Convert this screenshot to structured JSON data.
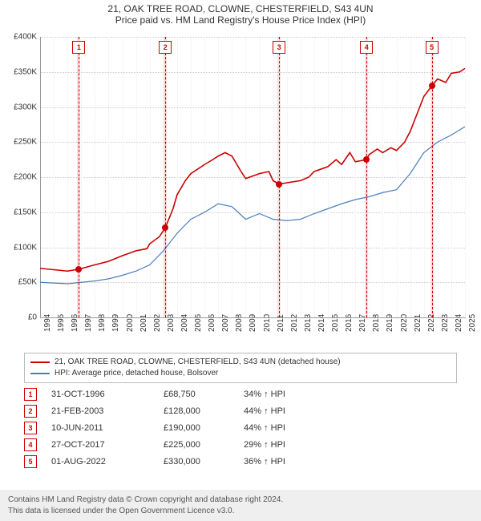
{
  "title": {
    "line1": "21, OAK TREE ROAD, CLOWNE, CHESTERFIELD, S43 4UN",
    "line2": "Price paid vs. HM Land Registry's House Price Index (HPI)"
  },
  "chart": {
    "type": "line",
    "xlim": [
      1994,
      2025
    ],
    "ylim": [
      0,
      400000
    ],
    "ytick_step": 50000,
    "y_prefix": "£",
    "y_ticks": [
      "£0",
      "£50K",
      "£100K",
      "£150K",
      "£200K",
      "£250K",
      "£300K",
      "£350K",
      "£400K"
    ],
    "x_ticks": [
      1994,
      1995,
      1996,
      1997,
      1998,
      1999,
      2000,
      2001,
      2002,
      2003,
      2004,
      2005,
      2006,
      2007,
      2008,
      2009,
      2010,
      2011,
      2012,
      2013,
      2014,
      2015,
      2016,
      2017,
      2018,
      2019,
      2020,
      2021,
      2022,
      2023,
      2024,
      2025
    ],
    "grid_color": "#e5e5e5",
    "series": [
      {
        "name": "price_paid",
        "label": "21, OAK TREE ROAD, CLOWNE, CHESTERFIELD, S43 4UN (detached house)",
        "color": "#cc0000",
        "width": 1.6,
        "xy": [
          [
            1994,
            70000
          ],
          [
            1995,
            68000
          ],
          [
            1996,
            66000
          ],
          [
            1996.83,
            68750
          ],
          [
            1998,
            75000
          ],
          [
            1999,
            80000
          ],
          [
            2000,
            88000
          ],
          [
            2001,
            95000
          ],
          [
            2001.8,
            98000
          ],
          [
            2002,
            105000
          ],
          [
            2002.7,
            115000
          ],
          [
            2003.14,
            128000
          ],
          [
            2003.7,
            155000
          ],
          [
            2004,
            175000
          ],
          [
            2004.6,
            195000
          ],
          [
            2005,
            205000
          ],
          [
            2006,
            218000
          ],
          [
            2006.6,
            225000
          ],
          [
            2007,
            230000
          ],
          [
            2007.5,
            235000
          ],
          [
            2008,
            230000
          ],
          [
            2008.6,
            210000
          ],
          [
            2009,
            198000
          ],
          [
            2010,
            205000
          ],
          [
            2010.7,
            208000
          ],
          [
            2011,
            195000
          ],
          [
            2011.44,
            190000
          ],
          [
            2012,
            192000
          ],
          [
            2013,
            195000
          ],
          [
            2013.6,
            200000
          ],
          [
            2014,
            208000
          ],
          [
            2015,
            215000
          ],
          [
            2015.6,
            225000
          ],
          [
            2016,
            218000
          ],
          [
            2016.6,
            235000
          ],
          [
            2017,
            222000
          ],
          [
            2017.82,
            225000
          ],
          [
            2018,
            232000
          ],
          [
            2018.6,
            240000
          ],
          [
            2019,
            235000
          ],
          [
            2019.6,
            242000
          ],
          [
            2020,
            238000
          ],
          [
            2020.6,
            250000
          ],
          [
            2021,
            265000
          ],
          [
            2021.6,
            295000
          ],
          [
            2022,
            315000
          ],
          [
            2022.58,
            330000
          ],
          [
            2023,
            340000
          ],
          [
            2023.6,
            335000
          ],
          [
            2024,
            348000
          ],
          [
            2024.6,
            350000
          ],
          [
            2025,
            355000
          ]
        ]
      },
      {
        "name": "hpi",
        "label": "HPI: Average price, detached house, Bolsover",
        "color": "#4a7ebb",
        "width": 1.2,
        "xy": [
          [
            1994,
            50000
          ],
          [
            1995,
            49000
          ],
          [
            1996,
            48000
          ],
          [
            1997,
            50000
          ],
          [
            1998,
            52000
          ],
          [
            1999,
            55000
          ],
          [
            2000,
            60000
          ],
          [
            2001,
            66000
          ],
          [
            2002,
            75000
          ],
          [
            2003,
            95000
          ],
          [
            2004,
            120000
          ],
          [
            2005,
            140000
          ],
          [
            2006,
            150000
          ],
          [
            2007,
            162000
          ],
          [
            2008,
            158000
          ],
          [
            2009,
            140000
          ],
          [
            2010,
            148000
          ],
          [
            2011,
            140000
          ],
          [
            2012,
            138000
          ],
          [
            2013,
            140000
          ],
          [
            2014,
            148000
          ],
          [
            2015,
            155000
          ],
          [
            2016,
            162000
          ],
          [
            2017,
            168000
          ],
          [
            2018,
            172000
          ],
          [
            2019,
            178000
          ],
          [
            2020,
            182000
          ],
          [
            2021,
            205000
          ],
          [
            2022,
            235000
          ],
          [
            2023,
            250000
          ],
          [
            2024,
            260000
          ],
          [
            2025,
            272000
          ]
        ]
      }
    ],
    "sales_markers": [
      {
        "n": "1",
        "x": 1996.83,
        "y": 68750
      },
      {
        "n": "2",
        "x": 2003.14,
        "y": 128000
      },
      {
        "n": "3",
        "x": 2011.44,
        "y": 190000
      },
      {
        "n": "4",
        "x": 2017.82,
        "y": 225000
      },
      {
        "n": "5",
        "x": 2022.58,
        "y": 330000
      }
    ],
    "marker_box_color": "#cc0000",
    "band_color": "#ff0000",
    "band_opacity": 0.13
  },
  "legend": {
    "row1": "21, OAK TREE ROAD, CLOWNE, CHESTERFIELD, S43 4UN (detached house)",
    "row2": "HPI: Average price, detached house, Bolsover"
  },
  "transactions": [
    {
      "n": "1",
      "date": "31-OCT-1996",
      "price": "£68,750",
      "pct": "34% ↑ HPI"
    },
    {
      "n": "2",
      "date": "21-FEB-2003",
      "price": "£128,000",
      "pct": "44% ↑ HPI"
    },
    {
      "n": "3",
      "date": "10-JUN-2011",
      "price": "£190,000",
      "pct": "44% ↑ HPI"
    },
    {
      "n": "4",
      "date": "27-OCT-2017",
      "price": "£225,000",
      "pct": "29% ↑ HPI"
    },
    {
      "n": "5",
      "date": "01-AUG-2022",
      "price": "£330,000",
      "pct": "36% ↑ HPI"
    }
  ],
  "footer": {
    "line1": "Contains HM Land Registry data © Crown copyright and database right 2024.",
    "line2": "This data is licensed under the Open Government Licence v3.0."
  }
}
